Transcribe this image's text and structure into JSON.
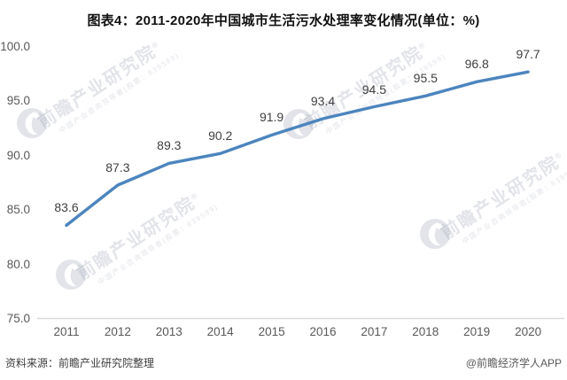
{
  "title": "图表4：2011-2020年中国城市生活污水处理率变化情况(单位：%)",
  "chart_data": {
    "type": "line",
    "title": "图表4：2011-2020年中国城市生活污水处理率变化情况(单位：%)",
    "x": [
      "2011",
      "2012",
      "2013",
      "2014",
      "2015",
      "2016",
      "2017",
      "2018",
      "2019",
      "2020"
    ],
    "values": [
      83.6,
      87.3,
      89.3,
      90.2,
      91.9,
      93.4,
      94.5,
      95.5,
      96.8,
      97.7
    ],
    "series_name": "城市生活污水处理率",
    "unit": "%",
    "ylim": [
      75,
      100
    ],
    "yticks": [
      75,
      80,
      85,
      90,
      95,
      100
    ],
    "grid": false,
    "legend": "none",
    "line_color": "#4C85BE",
    "axis_line_color": "#D9D9D9",
    "data_label_color": "#404040",
    "tick_label_color": "#595959"
  },
  "footer": {
    "source": "资料来源：前瞻产业研究院整理",
    "credit": "@前瞻经济学人APP"
  },
  "watermark": {
    "big": "前瞻产业研究院",
    "reg": "®",
    "small": "中国产业咨询领导者(股票：839599)"
  }
}
